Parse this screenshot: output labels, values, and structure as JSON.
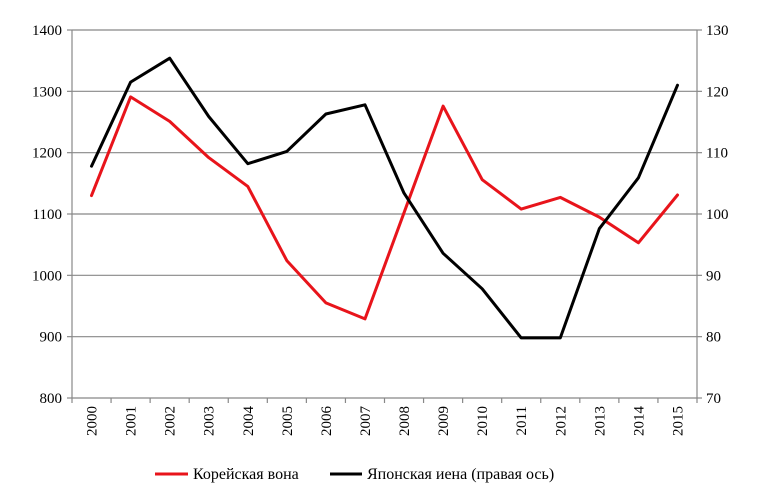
{
  "chart_data": {
    "type": "line",
    "title": "",
    "x": [
      "2000",
      "2001",
      "2002",
      "2003",
      "2004",
      "2005",
      "2006",
      "2007",
      "2008",
      "2009",
      "2010",
      "2011",
      "2012",
      "2013",
      "2014",
      "2015"
    ],
    "series": [
      {
        "name": "Корейская вона",
        "axis": "left",
        "color": "#e8141b",
        "values": [
          1130,
          1291,
          1251,
          1192,
          1145,
          1024,
          955,
          929,
          1102,
          1276,
          1156,
          1108,
          1127,
          1095,
          1053,
          1131
        ]
      },
      {
        "name": "Японская иена (правая ось)",
        "axis": "right",
        "color": "#000000",
        "values": [
          107.8,
          121.5,
          125.4,
          115.9,
          108.2,
          110.2,
          116.3,
          117.8,
          103.4,
          93.6,
          87.8,
          79.8,
          79.8,
          97.6,
          105.9,
          121.0
        ]
      }
    ],
    "y_left": {
      "min": 800,
      "max": 1400,
      "step": 100,
      "ticks": [
        "800",
        "900",
        "1000",
        "1100",
        "1200",
        "1300",
        "1400"
      ]
    },
    "y_right": {
      "min": 70,
      "max": 130,
      "step": 10,
      "ticks": [
        "70",
        "80",
        "90",
        "100",
        "110",
        "120",
        "130"
      ]
    },
    "grid": true,
    "legend_position": "bottom"
  }
}
